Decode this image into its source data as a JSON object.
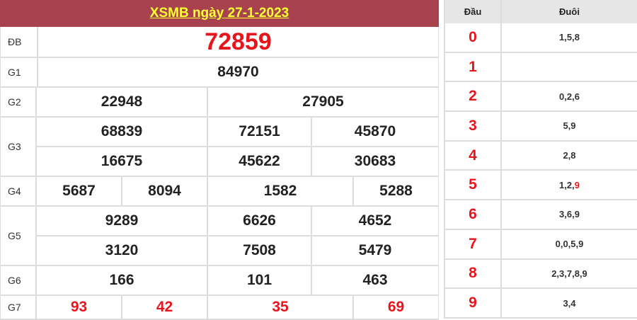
{
  "title": "XSMB ngày 27-1-2023",
  "prizes": {
    "db": {
      "label": "ĐB",
      "values": [
        "72859"
      ]
    },
    "g1": {
      "label": "G1",
      "values": [
        "84970"
      ]
    },
    "g2": {
      "label": "G2",
      "values": [
        "22948",
        "27905"
      ]
    },
    "g3": {
      "label": "G3",
      "values": [
        "68839",
        "72151",
        "45870",
        "16675",
        "45622",
        "30683"
      ]
    },
    "g4": {
      "label": "G4",
      "values": [
        "5687",
        "8094",
        "1582",
        "5288"
      ]
    },
    "g5": {
      "label": "G5",
      "values": [
        "9289",
        "6626",
        "4652",
        "3120",
        "7508",
        "5479"
      ]
    },
    "g6": {
      "label": "G6",
      "values": [
        "166",
        "101",
        "463"
      ]
    },
    "g7": {
      "label": "G7",
      "values": [
        "93",
        "42",
        "35",
        "69"
      ]
    }
  },
  "loto": {
    "header": {
      "dau": "Đầu",
      "duoi": "Đuôi"
    },
    "rows": [
      {
        "dau": "0",
        "duoi": "1,5,8"
      },
      {
        "dau": "1",
        "duoi": ""
      },
      {
        "dau": "2",
        "duoi": "0,2,6"
      },
      {
        "dau": "3",
        "duoi": "5,9"
      },
      {
        "dau": "4",
        "duoi": "2,8"
      },
      {
        "dau": "5",
        "duoi": "1,2,",
        "duoi_highlight": "9"
      },
      {
        "dau": "6",
        "duoi": "3,6,9"
      },
      {
        "dau": "7",
        "duoi": "0,0,5,9"
      },
      {
        "dau": "8",
        "duoi": "2,3,7,8,9"
      },
      {
        "dau": "9",
        "duoi": "3,4"
      }
    ]
  },
  "colors": {
    "header": "#a8424f",
    "title": "#ffff33",
    "highlight": "#e8141c"
  }
}
